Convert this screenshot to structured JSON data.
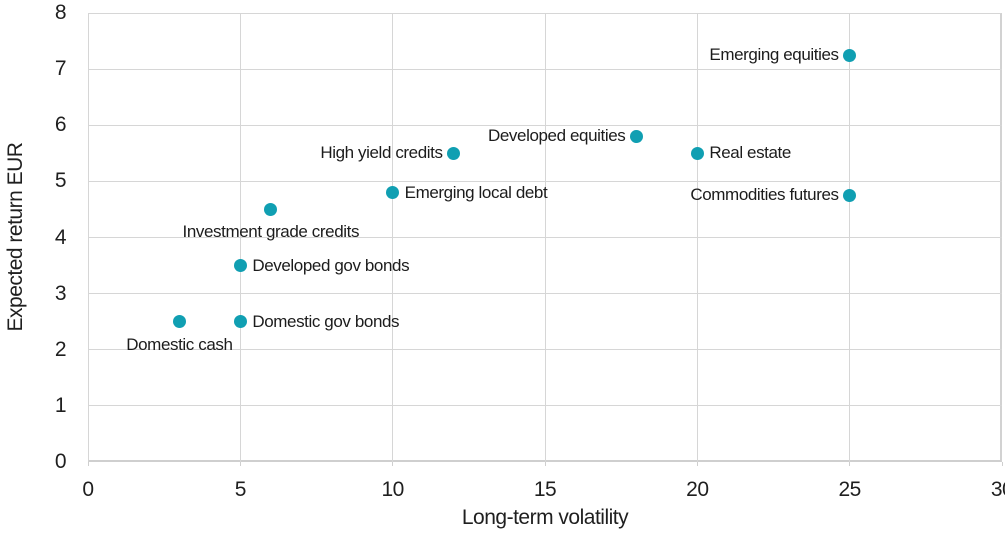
{
  "chart_data": {
    "type": "scatter",
    "title": "",
    "xlabel": "Long-term volatility",
    "ylabel": "Expected return EUR",
    "xlim": [
      0,
      30
    ],
    "ylim": [
      0,
      8
    ],
    "xticks": [
      0,
      5,
      10,
      15,
      20,
      25,
      30
    ],
    "yticks": [
      0,
      1,
      2,
      3,
      4,
      5,
      6,
      7,
      8
    ],
    "grid": true,
    "legend": "none",
    "colors": {
      "point": "#109fb2",
      "gridline": "#d6d6d6",
      "axis_line": "#cfcfcf",
      "text": "#1f1f1f"
    },
    "points": [
      {
        "label": "Domestic cash",
        "x": 3,
        "y": 2.5,
        "label_side": "below"
      },
      {
        "label": "Domestic gov bonds",
        "x": 5,
        "y": 2.5,
        "label_side": "right"
      },
      {
        "label": "Developed gov bonds",
        "x": 5,
        "y": 3.5,
        "label_side": "right"
      },
      {
        "label": "Investment grade credits",
        "x": 6,
        "y": 4.5,
        "label_side": "below"
      },
      {
        "label": "Emerging local debt",
        "x": 10,
        "y": 4.8,
        "label_side": "right"
      },
      {
        "label": "High yield credits",
        "x": 12,
        "y": 5.5,
        "label_side": "left"
      },
      {
        "label": "Developed equities",
        "x": 18,
        "y": 5.8,
        "label_side": "left"
      },
      {
        "label": "Real estate",
        "x": 20,
        "y": 5.5,
        "label_side": "right"
      },
      {
        "label": "Commodities futures",
        "x": 25,
        "y": 4.75,
        "label_side": "left"
      },
      {
        "label": "Emerging equities",
        "x": 25,
        "y": 7.25,
        "label_side": "left"
      }
    ]
  }
}
